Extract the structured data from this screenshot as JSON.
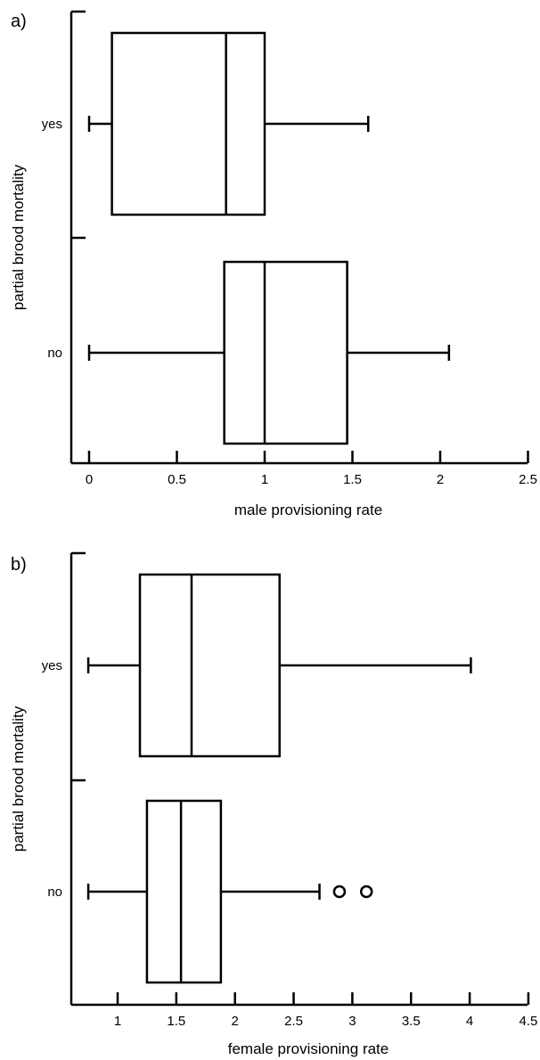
{
  "chart_data": [
    {
      "type": "boxplot",
      "panel_label": "a)",
      "xlabel": "male provisioning rate",
      "ylabel": "partial brood mortality",
      "xlim": [
        -0.1,
        2.5
      ],
      "xticks": [
        0,
        0.5,
        1,
        1.5,
        2,
        2.5
      ],
      "xtick_labels": [
        "0",
        "0.5",
        "1",
        "1.5",
        "2",
        "2.5"
      ],
      "categories": [
        "yes",
        "no"
      ],
      "boxes": [
        {
          "category": "yes",
          "whisker_low": 0,
          "q1": 0.13,
          "median": 0.78,
          "q3": 1.0,
          "whisker_high": 1.59,
          "outliers": []
        },
        {
          "category": "no",
          "whisker_low": 0,
          "q1": 0.77,
          "median": 1.0,
          "q3": 1.47,
          "whisker_high": 2.05,
          "outliers": []
        }
      ]
    },
    {
      "type": "boxplot",
      "panel_label": "b)",
      "xlabel": "female provisioning rate",
      "ylabel": "partial brood mortality",
      "xlim": [
        0.6,
        4.5
      ],
      "xticks": [
        1,
        1.5,
        2,
        2.5,
        3,
        3.5,
        4,
        4.5
      ],
      "xtick_labels": [
        "1",
        "1.5",
        "2",
        "2.5",
        "3",
        "3.5",
        "4",
        "4.5"
      ],
      "categories": [
        "yes",
        "no"
      ],
      "boxes": [
        {
          "category": "yes",
          "whisker_low": 0.75,
          "q1": 1.19,
          "median": 1.63,
          "q3": 2.38,
          "whisker_high": 4.01,
          "outliers": []
        },
        {
          "category": "no",
          "whisker_low": 0.75,
          "q1": 1.25,
          "median": 1.54,
          "q3": 1.88,
          "whisker_high": 2.72,
          "outliers": [
            2.89,
            3.12
          ]
        }
      ]
    }
  ]
}
